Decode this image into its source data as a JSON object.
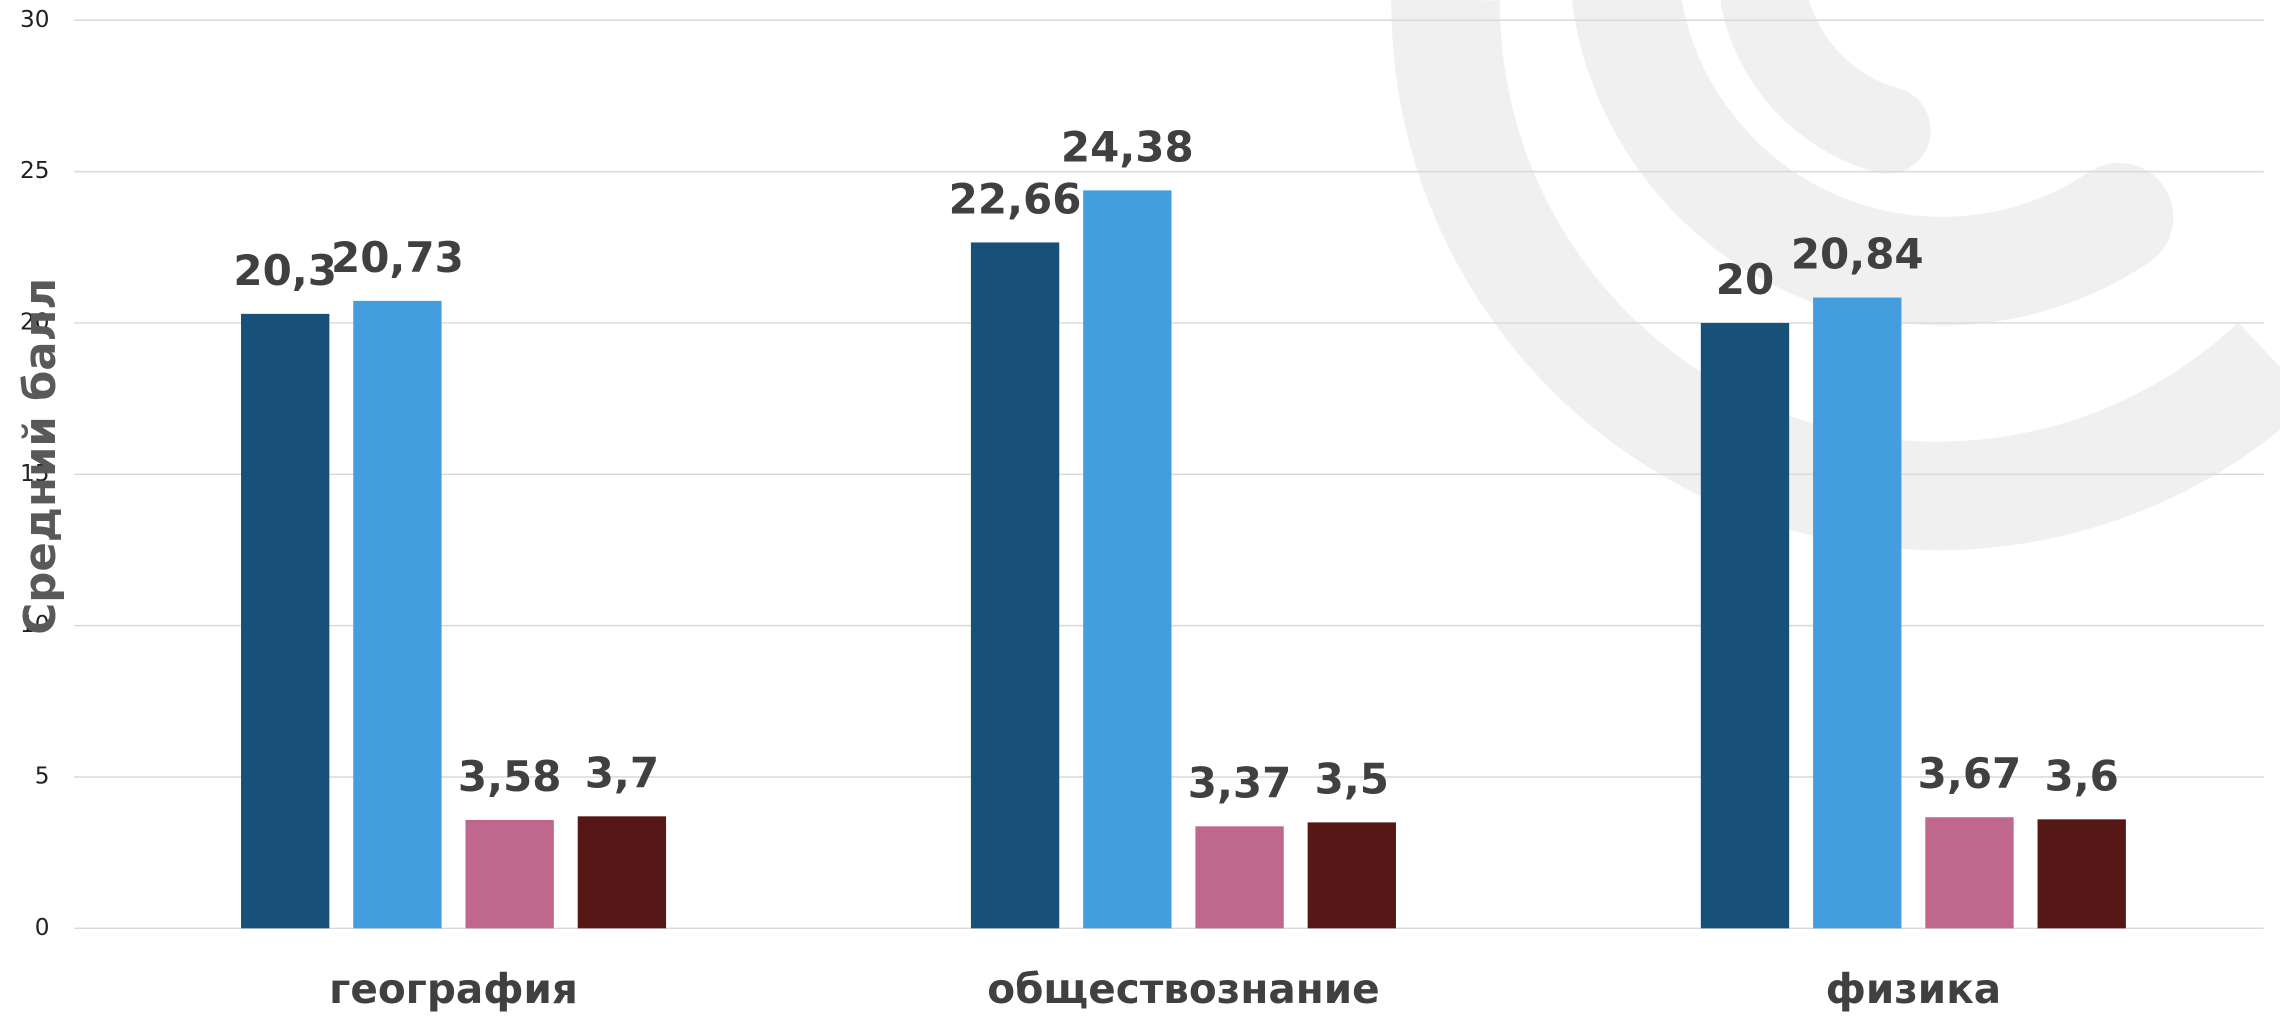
{
  "chart_data": {
    "type": "bar",
    "y_label": "Средний балл",
    "categories": [
      "география",
      "обществознание",
      "физика"
    ],
    "series": [
      {
        "color": "#17517a",
        "values": [
          20.3,
          22.66,
          20
        ],
        "value_labels": [
          "20,3",
          "22,66",
          "20"
        ]
      },
      {
        "color": "#449edd",
        "values": [
          20.73,
          24.38,
          20.84
        ],
        "value_labels": [
          "20,73",
          "24,38",
          "20,84"
        ]
      },
      {
        "color": "#c0678e",
        "values": [
          3.58,
          3.37,
          3.67
        ],
        "value_labels": [
          "3,58",
          "3,37",
          "3,67"
        ]
      },
      {
        "color": "#561717",
        "values": [
          3.7,
          3.5,
          3.6
        ],
        "value_labels": [
          "3,7",
          "3,5",
          "3,6"
        ]
      }
    ],
    "ylim": [
      0,
      30
    ],
    "yticks": [
      0,
      5,
      10,
      15,
      20,
      25,
      30
    ],
    "grid": true
  }
}
